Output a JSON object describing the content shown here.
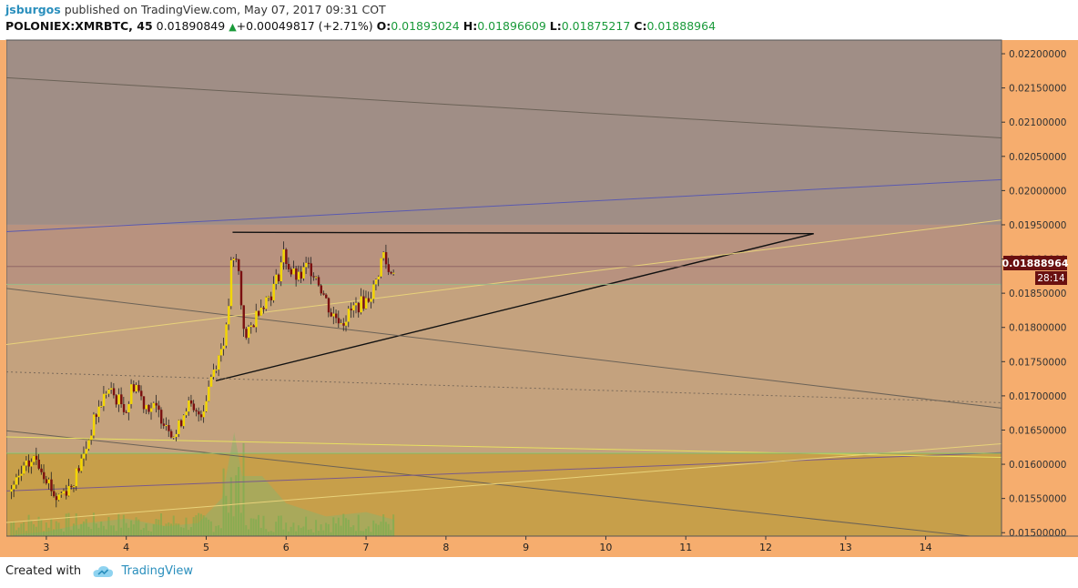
{
  "header": {
    "author": "jsburgos",
    "published": "published on TradingView.com, May 07, 2017 09:31 COT",
    "symbol": "POLONIEX:XMRBTC, 45",
    "last_price": "0.01890849",
    "change": "+0.00049817 (+2.71%)",
    "open_label": "O:",
    "open": "0.01893024",
    "high_label": "H:",
    "high": "0.01896609",
    "low_label": "L:",
    "low": "0.01875217",
    "close_label": "C:",
    "close": "0.01888964"
  },
  "price_badge": {
    "value": "0.01888964",
    "countdown": "28:14"
  },
  "footer": {
    "created_with": "Created with",
    "brand": "TradingView",
    "logo_icon": "tradingview-cloud-icon"
  },
  "colors": {
    "bull_candle": "#f2d600",
    "bear_candle": "#7a1010",
    "zone_top": "#a08e86",
    "zone_mid": "#b8927f",
    "zone_lower": "#c4a27e",
    "zone_bottom": "#c79f4a",
    "axis_bg": "#f6ad6e",
    "trend_line": "#111111"
  },
  "chart_data": {
    "type": "candlestick",
    "timeframe": "45",
    "x_ticks": [
      "3",
      "4",
      "5",
      "6",
      "7",
      "8",
      "9",
      "10",
      "11",
      "12",
      "13",
      "14"
    ],
    "x_tick_days": [
      3,
      4,
      5,
      6,
      7,
      8,
      9,
      10,
      11,
      12,
      13,
      14
    ],
    "x_range_days": [
      2.5,
      14.95
    ],
    "y_ticks": [
      "0.01500000",
      "0.01550000",
      "0.01600000",
      "0.01650000",
      "0.01700000",
      "0.01750000",
      "0.01800000",
      "0.01850000",
      "0.01900000",
      "0.01950000",
      "0.02000000",
      "0.02050000",
      "0.02100000",
      "0.02150000",
      "0.02200000"
    ],
    "y_range": [
      0.01495,
      0.0222
    ],
    "current_price": 0.01888964,
    "zones": [
      {
        "from": 0.0195,
        "to": 0.0222,
        "color": "#a08e86"
      },
      {
        "from": 0.01863,
        "to": 0.0195,
        "color": "#b8927f"
      },
      {
        "from": 0.01617,
        "to": 0.01863,
        "color": "#c4a27e"
      },
      {
        "from": 0.01495,
        "to": 0.01617,
        "color": "#c79f4a"
      }
    ],
    "price_path": [
      [
        2.55,
        0.0156
      ],
      [
        2.7,
        0.0159
      ],
      [
        2.85,
        0.0161
      ],
      [
        3.0,
        0.0158
      ],
      [
        3.1,
        0.0155
      ],
      [
        3.3,
        0.0157
      ],
      [
        3.45,
        0.0161
      ],
      [
        3.6,
        0.0167
      ],
      [
        3.75,
        0.0171
      ],
      [
        4.0,
        0.0168
      ],
      [
        4.05,
        0.0171
      ],
      [
        4.1,
        0.0172
      ],
      [
        4.2,
        0.0169
      ],
      [
        4.35,
        0.0168
      ],
      [
        4.5,
        0.0166
      ],
      [
        4.6,
        0.0164
      ],
      [
        4.75,
        0.0169
      ],
      [
        4.85,
        0.0167
      ],
      [
        4.95,
        0.0168
      ],
      [
        5.05,
        0.0173
      ],
      [
        5.15,
        0.0176
      ],
      [
        5.25,
        0.018
      ],
      [
        5.3,
        0.0189
      ],
      [
        5.38,
        0.019
      ],
      [
        5.42,
        0.0184
      ],
      [
        5.48,
        0.0178
      ],
      [
        5.55,
        0.018
      ],
      [
        5.65,
        0.0183
      ],
      [
        5.8,
        0.0185
      ],
      [
        5.9,
        0.0188
      ],
      [
        5.95,
        0.0191
      ],
      [
        6.05,
        0.0188
      ],
      [
        6.15,
        0.0187
      ],
      [
        6.25,
        0.0189
      ],
      [
        6.35,
        0.0188
      ],
      [
        6.45,
        0.0185
      ],
      [
        6.55,
        0.0182
      ],
      [
        6.7,
        0.0181
      ],
      [
        6.85,
        0.0183
      ],
      [
        7.0,
        0.0184
      ],
      [
        7.1,
        0.0186
      ],
      [
        7.2,
        0.0191
      ],
      [
        7.27,
        0.0188
      ],
      [
        7.35,
        0.01889
      ]
    ],
    "volume_path": [
      [
        2.6,
        0.015
      ],
      [
        3.0,
        0.04
      ],
      [
        3.5,
        0.12
      ],
      [
        4.0,
        0.16
      ],
      [
        4.5,
        0.09
      ],
      [
        4.9,
        0.12
      ],
      [
        5.2,
        0.35
      ],
      [
        5.35,
        0.95
      ],
      [
        5.45,
        0.55
      ],
      [
        5.7,
        0.55
      ],
      [
        6.0,
        0.3
      ],
      [
        6.5,
        0.18
      ],
      [
        7.0,
        0.22
      ],
      [
        7.35,
        0.15
      ]
    ],
    "trend_lines": [
      {
        "name": "triangle-top",
        "from": [
          5.33,
          0.01939
        ],
        "to": [
          12.6,
          0.01937
        ],
        "color": "#111111",
        "width": 1.4
      },
      {
        "name": "triangle-bottom",
        "from": [
          5.12,
          0.01722
        ],
        "to": [
          12.6,
          0.01937
        ],
        "color": "#111111",
        "width": 1.4
      },
      {
        "name": "blue-resistance",
        "from": [
          2.5,
          0.0194
        ],
        "to": [
          14.95,
          0.02016
        ],
        "color": "#5a5ab0",
        "width": 1
      },
      {
        "name": "upper-channel",
        "from": [
          2.5,
          0.02165
        ],
        "to": [
          14.95,
          0.02077
        ],
        "color": "#6b6257",
        "width": 1
      },
      {
        "name": "mid-channel",
        "from": [
          2.5,
          0.01857
        ],
        "to": [
          14.95,
          0.01682
        ],
        "color": "#6b6257",
        "width": 1
      },
      {
        "name": "dotted-channel",
        "from": [
          2.5,
          0.01735
        ],
        "to": [
          14.95,
          0.0169
        ],
        "color": "#7a6a5a",
        "width": 1,
        "dash": true
      },
      {
        "name": "lower-channel",
        "from": [
          2.5,
          0.01649
        ],
        "to": [
          14.95,
          0.0149
        ],
        "color": "#6b6257",
        "width": 1
      },
      {
        "name": "purple-support",
        "from": [
          2.5,
          0.01561
        ],
        "to": [
          14.95,
          0.01617
        ],
        "color": "#7a5a8a",
        "width": 1
      },
      {
        "name": "yellow-line-a",
        "from": [
          2.5,
          0.01775
        ],
        "to": [
          14.95,
          0.01957
        ],
        "color": "#e8d27a",
        "width": 1
      },
      {
        "name": "yellow-line-b",
        "from": [
          2.5,
          0.0164
        ],
        "to": [
          14.95,
          0.0161
        ],
        "color": "#e8e060",
        "width": 1
      },
      {
        "name": "yellow-line-c",
        "from": [
          2.5,
          0.01515
        ],
        "to": [
          14.95,
          0.0163
        ],
        "color": "#e8d27a",
        "width": 1
      },
      {
        "name": "green-support",
        "from": [
          2.5,
          0.01616
        ],
        "to": [
          14.95,
          0.01616
        ],
        "color": "#7ab86a",
        "width": 1
      },
      {
        "name": "green-mid",
        "from": [
          2.5,
          0.01863
        ],
        "to": [
          14.95,
          0.01863
        ],
        "color": "#9ab88a",
        "width": 1
      },
      {
        "name": "current-price-line",
        "from": [
          2.5,
          0.01889
        ],
        "to": [
          14.95,
          0.01889
        ],
        "color": "#8a6060",
        "width": 0.8
      }
    ]
  }
}
